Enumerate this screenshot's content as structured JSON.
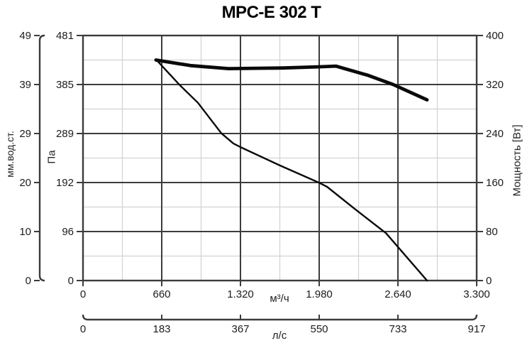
{
  "title": "MPC-E 302 T",
  "chart_data": {
    "type": "line",
    "title": "MPC-E 302 T",
    "x_axis": {
      "label": "м³/ч",
      "range": [
        0,
        3300
      ],
      "ticks": [
        0,
        660,
        1320,
        1980,
        2640,
        3300
      ],
      "tick_labels": [
        "0",
        "660",
        "1.320",
        "1.980",
        "2.640",
        "3.300"
      ]
    },
    "x_axis_secondary": {
      "label": "л/с",
      "range": [
        0,
        917
      ],
      "ticks": [
        0,
        183,
        367,
        550,
        733,
        917
      ],
      "tick_labels": [
        "0",
        "183",
        "367",
        "550",
        "733",
        "917"
      ]
    },
    "y_axis_left": {
      "label": "Па",
      "range": [
        0,
        481
      ],
      "ticks": [
        0,
        96,
        192,
        289,
        385,
        481
      ],
      "tick_labels": [
        "0",
        "96",
        "192",
        "289",
        "385",
        "481"
      ]
    },
    "y_axis_left_outer": {
      "label": "мм.вод.ст.",
      "range": [
        0,
        49
      ],
      "ticks": [
        0,
        10,
        20,
        29,
        39,
        49
      ],
      "tick_labels": [
        "0",
        "10",
        "20",
        "29",
        "39",
        "49"
      ]
    },
    "y_axis_right": {
      "label": "Мощность [Вт]",
      "range": [
        0,
        400
      ],
      "ticks": [
        0,
        80,
        160,
        240,
        320,
        400
      ],
      "tick_labels": [
        "0",
        "80",
        "160",
        "240",
        "320",
        "400"
      ]
    },
    "grid": {
      "major": true,
      "minor": true
    },
    "legend": "none",
    "series": [
      {
        "name": "pressure-curve",
        "axis": "left",
        "style": "thin",
        "points": [
          [
            612,
            434
          ],
          [
            810,
            384
          ],
          [
            963,
            349
          ],
          [
            1160,
            289
          ],
          [
            1261,
            269
          ],
          [
            1320,
            262
          ],
          [
            1650,
            226
          ],
          [
            1980,
            192
          ],
          [
            2046,
            184
          ],
          [
            2270,
            142
          ],
          [
            2540,
            93
          ],
          [
            2884,
            0
          ]
        ]
      },
      {
        "name": "power-curve",
        "axis": "right",
        "style": "thick",
        "points": [
          [
            612,
            360
          ],
          [
            900,
            351
          ],
          [
            1220,
            346
          ],
          [
            1680,
            347
          ],
          [
            1990,
            349
          ],
          [
            2120,
            350
          ],
          [
            2390,
            335
          ],
          [
            2600,
            320
          ],
          [
            2884,
            295
          ]
        ]
      }
    ],
    "colors": {
      "axis": "#3c3c3c",
      "minor_grid": "#d3d3d3",
      "curve": "#0a0a0a",
      "text": "#1c1c1c",
      "background": "#ffffff"
    }
  }
}
